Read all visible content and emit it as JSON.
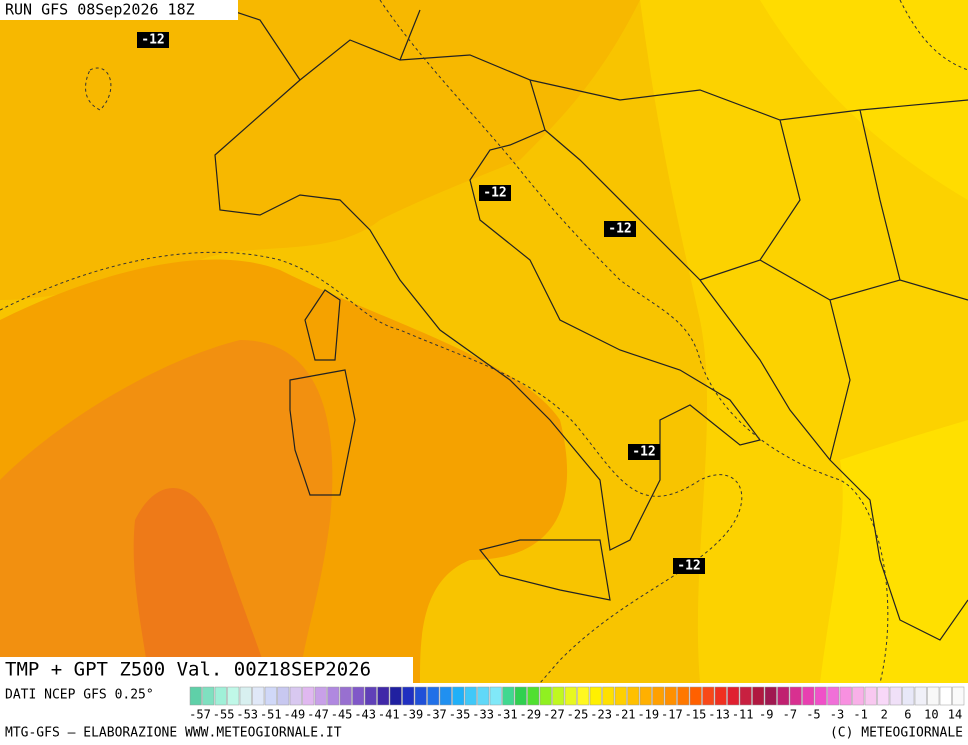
{
  "header": {
    "run": "RUN GFS 08Sep2026 18Z"
  },
  "contour_labels": [
    "-12",
    "-12",
    "-12",
    "-12",
    "-12"
  ],
  "map_title": "TMP + GPT Z500 Val. 00Z18SEP2026",
  "source": "DATI NCEP GFS 0.25°",
  "colorbar": {
    "labels": [
      -57,
      -55,
      -53,
      -51,
      -49,
      -47,
      -45,
      -43,
      -41,
      -39,
      -37,
      -35,
      -33,
      -31,
      -29,
      -27,
      -25,
      -23,
      -21,
      -19,
      -17,
      -15,
      -13,
      -11,
      -9,
      -7,
      -5,
      -3,
      -1,
      2,
      6,
      10,
      14
    ],
    "colors": [
      "#5fd0a8",
      "#7fe0c0",
      "#a0f0d8",
      "#c0f8e8",
      "#d8f0f0",
      "#e0e8f8",
      "#d0d8f8",
      "#c8c8f0",
      "#d8c8f0",
      "#e0b8f0",
      "#c8a0e8",
      "#b088e0",
      "#9870d0",
      "#8058c8",
      "#6040b8",
      "#4028a8",
      "#2020a0",
      "#2030c0",
      "#2050d8",
      "#2070e8",
      "#2090f0",
      "#20b0f8",
      "#40c8f8",
      "#60d8f8",
      "#80e8f8",
      "#40d890",
      "#30d050",
      "#50e030",
      "#90f020",
      "#c0f820",
      "#e8f820",
      "#fff820",
      "#fff000",
      "#ffe000",
      "#ffd000",
      "#ffc000",
      "#ffb000",
      "#ffa000",
      "#ff9000",
      "#ff7800",
      "#ff6000",
      "#f84818",
      "#f03020",
      "#e02030",
      "#c82040",
      "#b01840",
      "#a01850",
      "#c02070",
      "#d83090",
      "#e840b0",
      "#f050c8",
      "#f070d8",
      "#f890e0",
      "#f8b0e8",
      "#f8c8f0",
      "#f8d8f8",
      "#f0e0f8",
      "#e8e8f8",
      "#f0f0f8",
      "#f8f8f8",
      "#ffffff",
      "#fafafa"
    ]
  },
  "footer": {
    "left": "MTG-GFS — ELABORAZIONE WWW.METEOGIORNALE.IT",
    "right": "(C) METEOGIORNALE"
  }
}
